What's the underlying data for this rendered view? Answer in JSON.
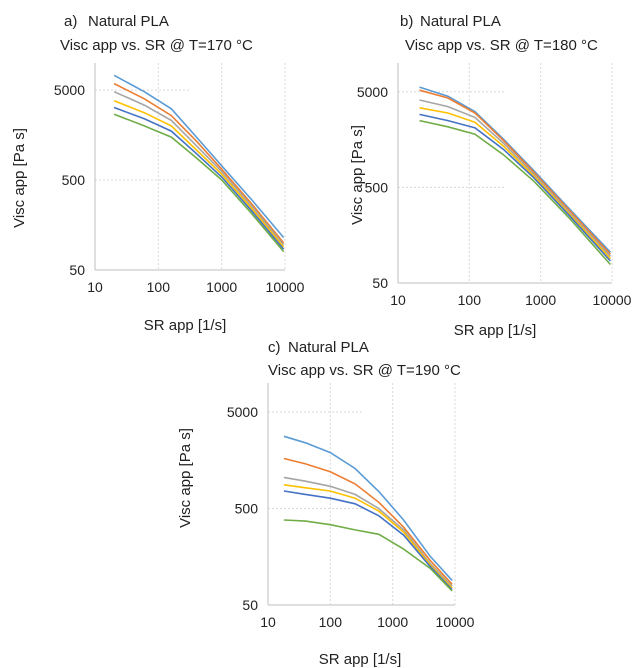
{
  "palette": [
    "#5B9BD5",
    "#ED7D31",
    "#A5A5A5",
    "#FFC000",
    "#4472C4",
    "#70AD47"
  ],
  "chart_data": [
    {
      "type": "line",
      "panel": "a)",
      "title": "Natural PLA",
      "subtitle": "Visc app vs. SR @ T=170 °C",
      "xlabel": "SR app [1/s]",
      "ylabel": "Visc app [Pa s]",
      "x_scale": "log",
      "y_scale": "log",
      "xlim": [
        10,
        10000
      ],
      "ylim": [
        50,
        10000
      ],
      "xticks": [
        "10",
        "100",
        "1000",
        "10000"
      ],
      "yticks": [
        "50",
        "500",
        "5000"
      ],
      "grid": true,
      "series": [
        {
          "x": [
            20,
            60,
            160,
            400,
            1000,
            3000,
            9500
          ],
          "values": [
            7300,
            4800,
            3100,
            1500,
            720,
            300,
            115
          ]
        },
        {
          "x": [
            20,
            60,
            160,
            400,
            1000,
            3000,
            9500
          ],
          "values": [
            5900,
            4000,
            2600,
            1350,
            660,
            270,
            100
          ]
        },
        {
          "x": [
            20,
            60,
            160,
            400,
            1000,
            3000,
            9500
          ],
          "values": [
            4800,
            3400,
            2300,
            1200,
            620,
            255,
            95
          ]
        },
        {
          "x": [
            20,
            60,
            160,
            400,
            1000,
            3000,
            9500
          ],
          "values": [
            3800,
            2800,
            2000,
            1080,
            580,
            240,
            90
          ]
        },
        {
          "x": [
            20,
            60,
            160,
            400,
            1000,
            3000,
            9500
          ],
          "values": [
            3200,
            2400,
            1750,
            980,
            540,
            225,
            85
          ]
        },
        {
          "x": [
            20,
            60,
            160,
            400,
            1000,
            3000,
            9500
          ],
          "values": [
            2700,
            2000,
            1500,
            880,
            500,
            210,
            80
          ]
        }
      ]
    },
    {
      "type": "line",
      "panel": "b)",
      "title": "Natural PLA",
      "subtitle": "Visc app vs. SR @ T=180 °C",
      "xlabel": "SR app [1/s]",
      "ylabel": "Visc app [Pa s]",
      "x_scale": "log",
      "y_scale": "log",
      "xlim": [
        10,
        10000
      ],
      "ylim": [
        50,
        10000
      ],
      "xticks": [
        "10",
        "100",
        "1000",
        "10000"
      ],
      "yticks": [
        "50",
        "500",
        "5000"
      ],
      "grid": true,
      "series": [
        {
          "x": [
            20,
            50,
            120,
            300,
            800,
            2500,
            9500
          ],
          "values": [
            5600,
            4500,
            3100,
            1600,
            750,
            300,
            105
          ]
        },
        {
          "x": [
            20,
            50,
            120,
            300,
            800,
            2500,
            9500
          ],
          "values": [
            5200,
            4300,
            3000,
            1550,
            720,
            290,
            100
          ]
        },
        {
          "x": [
            20,
            50,
            120,
            300,
            800,
            2500,
            9500
          ],
          "values": [
            4100,
            3500,
            2700,
            1450,
            690,
            275,
            95
          ]
        },
        {
          "x": [
            20,
            50,
            120,
            300,
            800,
            2500,
            9500
          ],
          "values": [
            3400,
            3000,
            2400,
            1350,
            660,
            265,
            90
          ]
        },
        {
          "x": [
            20,
            50,
            120,
            300,
            800,
            2500,
            9500
          ],
          "values": [
            2900,
            2500,
            2100,
            1250,
            630,
            255,
            85
          ]
        },
        {
          "x": [
            20,
            50,
            120,
            300,
            800,
            2500,
            9500
          ],
          "values": [
            2500,
            2150,
            1800,
            1100,
            580,
            240,
            78
          ]
        }
      ]
    },
    {
      "type": "line",
      "panel": "c)",
      "title": "Natural PLA",
      "subtitle": "Visc app vs. SR @ T=190 °C",
      "xlabel": "SR app [1/s]",
      "ylabel": "Visc app [Pa s]",
      "x_scale": "log",
      "y_scale": "log",
      "xlim": [
        10,
        10000
      ],
      "ylim": [
        50,
        10000
      ],
      "xticks": [
        "10",
        "100",
        "1000",
        "10000"
      ],
      "yticks": [
        "50",
        "500",
        "5000"
      ],
      "grid": true,
      "series": [
        {
          "x": [
            18,
            40,
            100,
            250,
            600,
            1500,
            4000,
            9000
          ],
          "values": [
            2800,
            2400,
            1900,
            1300,
            750,
            380,
            160,
            90
          ]
        },
        {
          "x": [
            18,
            40,
            100,
            250,
            600,
            1500,
            4000,
            9000
          ],
          "values": [
            1650,
            1450,
            1200,
            900,
            580,
            320,
            145,
            82
          ]
        },
        {
          "x": [
            18,
            40,
            100,
            250,
            600,
            1500,
            4000,
            9000
          ],
          "values": [
            1050,
            960,
            850,
            700,
            500,
            300,
            135,
            78
          ]
        },
        {
          "x": [
            18,
            40,
            100,
            250,
            600,
            1500,
            4000,
            9000
          ],
          "values": [
            880,
            820,
            760,
            640,
            470,
            285,
            130,
            75
          ]
        },
        {
          "x": [
            18,
            40,
            100,
            250,
            600,
            1500,
            4000,
            9000
          ],
          "values": [
            760,
            700,
            640,
            560,
            420,
            265,
            125,
            72
          ]
        },
        {
          "x": [
            18,
            40,
            100,
            250,
            600,
            1500,
            4000,
            9000
          ],
          "values": [
            380,
            370,
            340,
            300,
            270,
            190,
            120,
            70
          ]
        }
      ]
    }
  ]
}
